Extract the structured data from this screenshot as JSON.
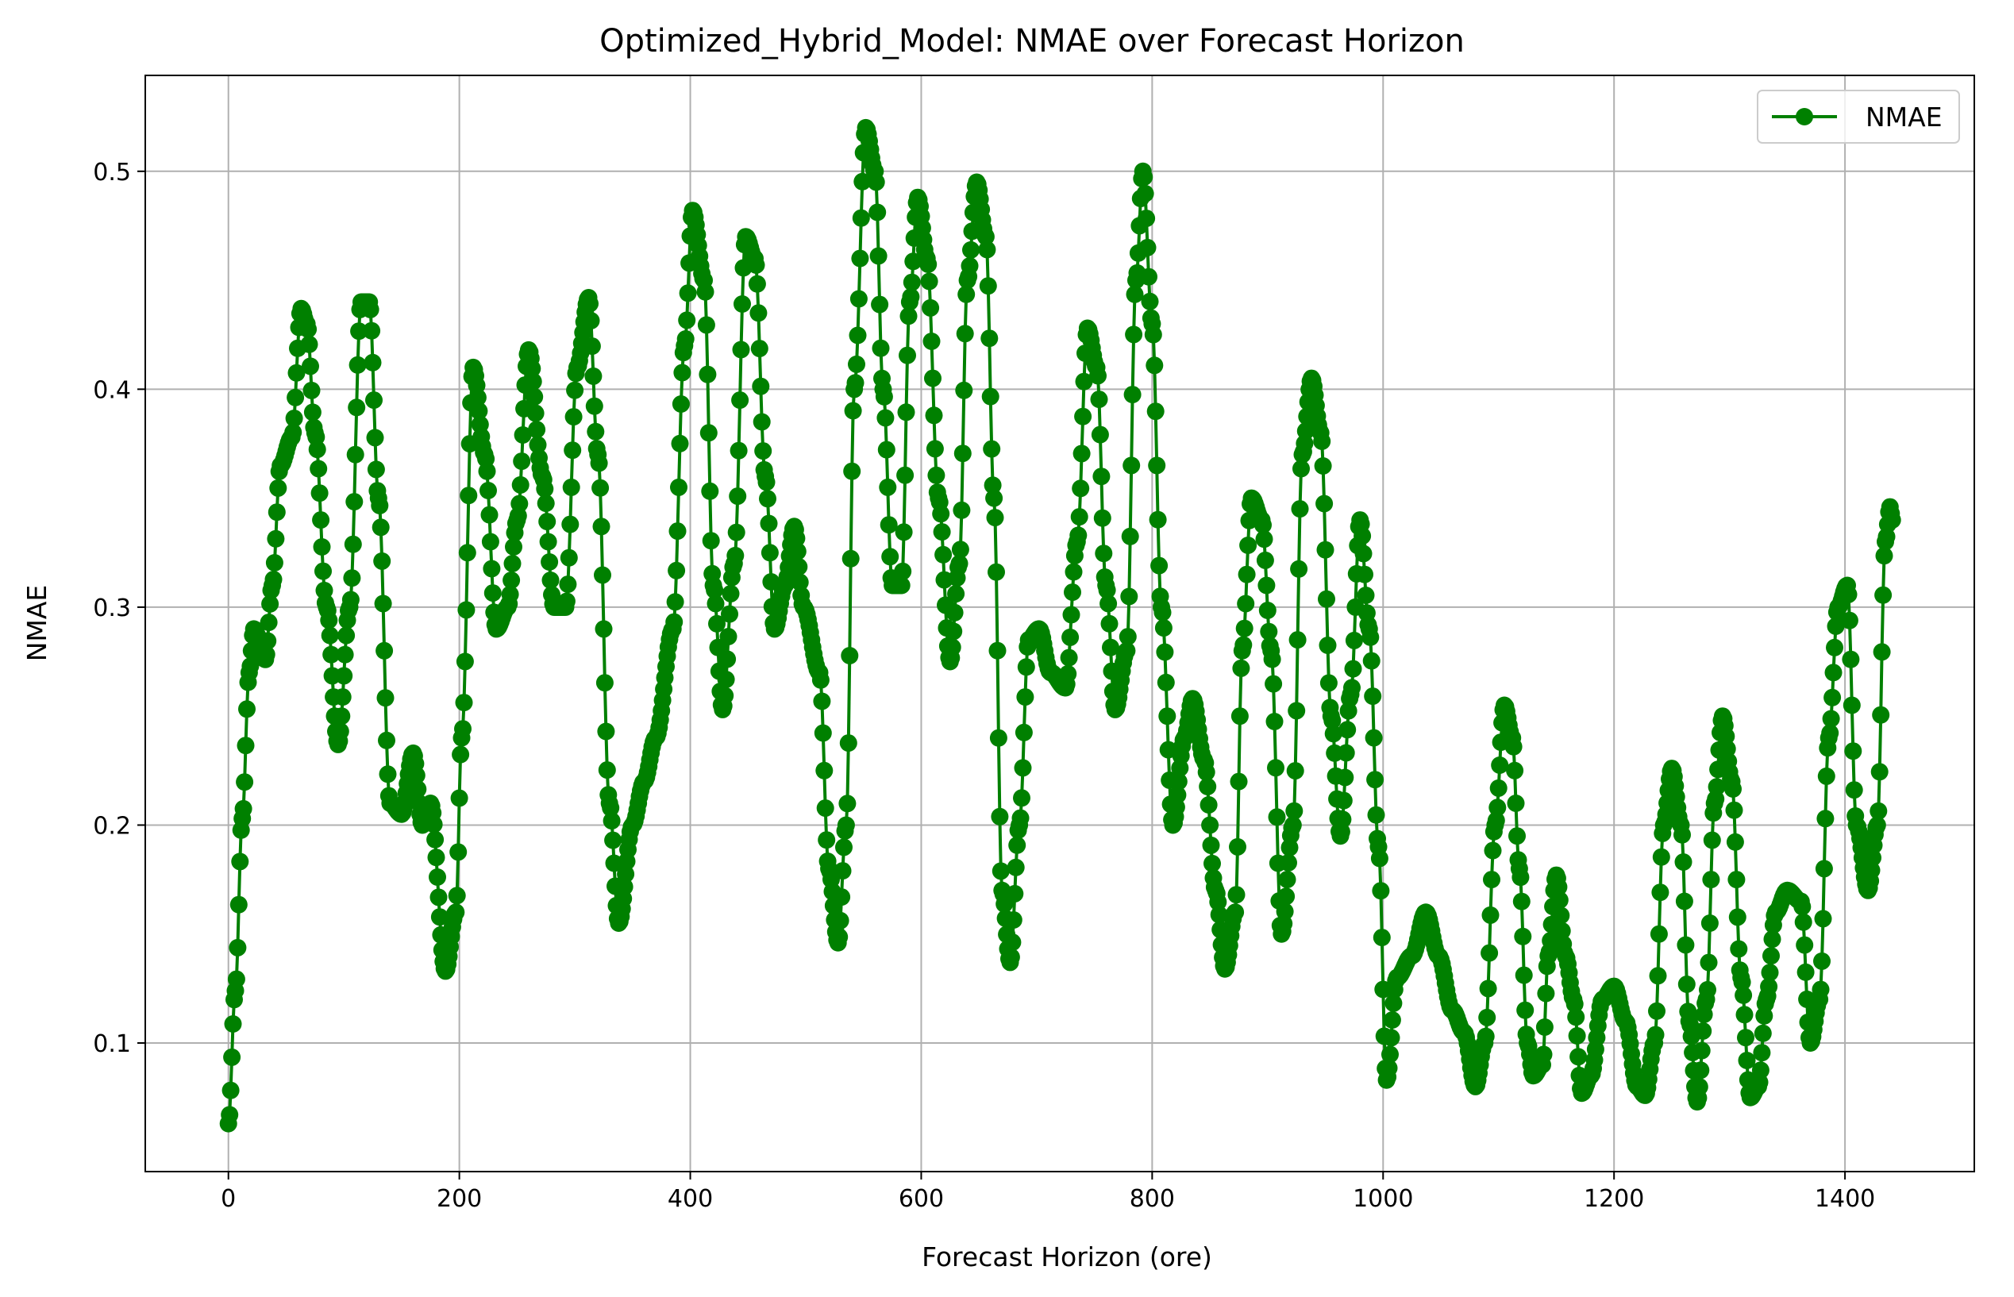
{
  "chart_data": {
    "type": "line",
    "title": "Optimized_Hybrid_Model: NMAE over Forecast Horizon",
    "xlabel": "Forecast Horizon (ore)",
    "ylabel": "NMAE",
    "xlim": [
      -72,
      1512
    ],
    "ylim": [
      0.041,
      0.544
    ],
    "xticks": [
      0,
      200,
      400,
      600,
      800,
      1000,
      1200,
      1400
    ],
    "yticks": [
      0.1,
      0.2,
      0.3,
      0.4,
      0.5
    ],
    "grid": true,
    "legend_position": "top-right",
    "colors": {
      "series": "#008000",
      "grid": "#b0b0b0",
      "axis": "#000000"
    },
    "series": [
      {
        "name": "NMAE",
        "marker": "circle",
        "anchors": [
          [
            0,
            0.063
          ],
          [
            6,
            0.124
          ],
          [
            12,
            0.203
          ],
          [
            18,
            0.27
          ],
          [
            22,
            0.29
          ],
          [
            32,
            0.276
          ],
          [
            38,
            0.31
          ],
          [
            45,
            0.365
          ],
          [
            55,
            0.378
          ],
          [
            63,
            0.437
          ],
          [
            68,
            0.43
          ],
          [
            75,
            0.38
          ],
          [
            85,
            0.3
          ],
          [
            95,
            0.237
          ],
          [
            105,
            0.3
          ],
          [
            115,
            0.44
          ],
          [
            122,
            0.44
          ],
          [
            130,
            0.35
          ],
          [
            140,
            0.21
          ],
          [
            150,
            0.205
          ],
          [
            160,
            0.233
          ],
          [
            168,
            0.2
          ],
          [
            175,
            0.21
          ],
          [
            188,
            0.133
          ],
          [
            197,
            0.16
          ],
          [
            202,
            0.24
          ],
          [
            212,
            0.41
          ],
          [
            222,
            0.37
          ],
          [
            232,
            0.29
          ],
          [
            242,
            0.3
          ],
          [
            250,
            0.34
          ],
          [
            260,
            0.418
          ],
          [
            272,
            0.36
          ],
          [
            282,
            0.3
          ],
          [
            292,
            0.3
          ],
          [
            302,
            0.41
          ],
          [
            312,
            0.442
          ],
          [
            320,
            0.37
          ],
          [
            330,
            0.21
          ],
          [
            338,
            0.155
          ],
          [
            350,
            0.2
          ],
          [
            360,
            0.22
          ],
          [
            370,
            0.24
          ],
          [
            385,
            0.29
          ],
          [
            395,
            0.42
          ],
          [
            402,
            0.482
          ],
          [
            412,
            0.45
          ],
          [
            420,
            0.31
          ],
          [
            428,
            0.253
          ],
          [
            438,
            0.32
          ],
          [
            448,
            0.47
          ],
          [
            456,
            0.46
          ],
          [
            465,
            0.36
          ],
          [
            473,
            0.29
          ],
          [
            482,
            0.31
          ],
          [
            490,
            0.337
          ],
          [
            498,
            0.3
          ],
          [
            512,
            0.27
          ],
          [
            520,
            0.18
          ],
          [
            528,
            0.146
          ],
          [
            535,
            0.2
          ],
          [
            542,
            0.4
          ],
          [
            552,
            0.52
          ],
          [
            560,
            0.5
          ],
          [
            567,
            0.4
          ],
          [
            575,
            0.31
          ],
          [
            583,
            0.31
          ],
          [
            590,
            0.44
          ],
          [
            597,
            0.488
          ],
          [
            605,
            0.46
          ],
          [
            615,
            0.35
          ],
          [
            625,
            0.275
          ],
          [
            633,
            0.32
          ],
          [
            640,
            0.45
          ],
          [
            648,
            0.495
          ],
          [
            656,
            0.47
          ],
          [
            663,
            0.35
          ],
          [
            670,
            0.17
          ],
          [
            677,
            0.137
          ],
          [
            685,
            0.2
          ],
          [
            693,
            0.285
          ],
          [
            702,
            0.29
          ],
          [
            712,
            0.27
          ],
          [
            725,
            0.263
          ],
          [
            735,
            0.33
          ],
          [
            744,
            0.428
          ],
          [
            752,
            0.41
          ],
          [
            760,
            0.31
          ],
          [
            768,
            0.253
          ],
          [
            778,
            0.28
          ],
          [
            786,
            0.45
          ],
          [
            792,
            0.5
          ],
          [
            800,
            0.43
          ],
          [
            808,
            0.3
          ],
          [
            818,
            0.2
          ],
          [
            828,
            0.24
          ],
          [
            835,
            0.258
          ],
          [
            845,
            0.23
          ],
          [
            855,
            0.17
          ],
          [
            863,
            0.134
          ],
          [
            872,
            0.16
          ],
          [
            878,
            0.28
          ],
          [
            886,
            0.35
          ],
          [
            895,
            0.34
          ],
          [
            903,
            0.28
          ],
          [
            912,
            0.15
          ],
          [
            922,
            0.2
          ],
          [
            930,
            0.37
          ],
          [
            938,
            0.405
          ],
          [
            946,
            0.38
          ],
          [
            955,
            0.25
          ],
          [
            963,
            0.195
          ],
          [
            972,
            0.26
          ],
          [
            980,
            0.34
          ],
          [
            988,
            0.29
          ],
          [
            996,
            0.19
          ],
          [
            1003,
            0.083
          ],
          [
            1012,
            0.13
          ],
          [
            1025,
            0.14
          ],
          [
            1037,
            0.16
          ],
          [
            1048,
            0.14
          ],
          [
            1060,
            0.115
          ],
          [
            1070,
            0.105
          ],
          [
            1080,
            0.08
          ],
          [
            1088,
            0.1
          ],
          [
            1097,
            0.2
          ],
          [
            1105,
            0.255
          ],
          [
            1112,
            0.24
          ],
          [
            1118,
            0.18
          ],
          [
            1125,
            0.1
          ],
          [
            1130,
            0.085
          ],
          [
            1138,
            0.09
          ],
          [
            1143,
            0.14
          ],
          [
            1150,
            0.177
          ],
          [
            1158,
            0.14
          ],
          [
            1165,
            0.12
          ],
          [
            1172,
            0.077
          ],
          [
            1180,
            0.085
          ],
          [
            1190,
            0.12
          ],
          [
            1200,
            0.126
          ],
          [
            1210,
            0.11
          ],
          [
            1220,
            0.08
          ],
          [
            1227,
            0.076
          ],
          [
            1235,
            0.1
          ],
          [
            1243,
            0.2
          ],
          [
            1250,
            0.226
          ],
          [
            1258,
            0.2
          ],
          [
            1265,
            0.11
          ],
          [
            1272,
            0.073
          ],
          [
            1280,
            0.12
          ],
          [
            1287,
            0.21
          ],
          [
            1294,
            0.25
          ],
          [
            1302,
            0.22
          ],
          [
            1310,
            0.13
          ],
          [
            1318,
            0.075
          ],
          [
            1325,
            0.08
          ],
          [
            1332,
            0.12
          ],
          [
            1340,
            0.16
          ],
          [
            1350,
            0.17
          ],
          [
            1362,
            0.165
          ],
          [
            1370,
            0.1
          ],
          [
            1378,
            0.12
          ],
          [
            1386,
            0.24
          ],
          [
            1394,
            0.3
          ],
          [
            1402,
            0.31
          ],
          [
            1410,
            0.2
          ],
          [
            1420,
            0.17
          ],
          [
            1428,
            0.2
          ],
          [
            1435,
            0.33
          ],
          [
            1439,
            0.346
          ],
          [
            1441,
            0.34
          ]
        ]
      }
    ]
  }
}
